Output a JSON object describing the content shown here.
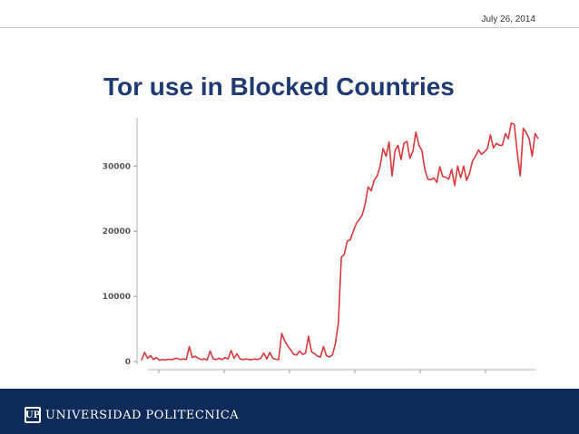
{
  "header": {
    "date": "July 26, 2014"
  },
  "slide": {
    "title": "Tor use in Blocked Countries"
  },
  "footer": {
    "logo_mark": "UP",
    "university": "UNIVERSIDAD POLITECNICA"
  },
  "colors": {
    "line": "#d9383d",
    "footer": "#0d2a58",
    "title": "#1f3a73"
  },
  "chart_data": {
    "type": "line",
    "title": "",
    "xlabel": "",
    "ylabel": "",
    "ylim": [
      0,
      37000
    ],
    "y_ticks": [
      0,
      10000,
      20000,
      30000
    ],
    "y_tick_labels": [
      "0",
      "10000",
      "20000",
      "30000"
    ],
    "grid": false,
    "series": [
      {
        "values": [
          200,
          1400,
          500,
          900,
          300,
          600,
          200,
          300,
          250,
          350,
          300,
          400,
          500,
          300,
          400,
          300,
          2300,
          600,
          800,
          500,
          300,
          400,
          250,
          1600,
          400,
          300,
          500,
          300,
          600,
          400,
          1700,
          500,
          1200,
          400,
          300,
          400,
          300,
          300,
          400,
          300,
          500,
          1300,
          400,
          1400,
          500,
          350,
          300,
          4300,
          3200,
          2400,
          1800,
          1100,
          1000,
          1600,
          1100,
          1300,
          3900,
          1500,
          1200,
          800,
          700,
          2300,
          900,
          700,
          1000,
          2800,
          6000,
          16000,
          16500,
          18500,
          18700,
          20000,
          21200,
          21800,
          22500,
          24200,
          26800,
          26200,
          27800,
          28500,
          30000,
          32700,
          31500,
          33700,
          28500,
          32400,
          33200,
          31000,
          33500,
          33800,
          31200,
          32300,
          35200,
          33200,
          32400,
          29500,
          28000,
          27900,
          28200,
          27500,
          29900,
          28400,
          28300,
          28000,
          29500,
          27000,
          30000,
          28200,
          30000,
          27800,
          28900,
          30800,
          31500,
          32500,
          31800,
          32200,
          32700,
          34800,
          32800,
          33500,
          33200,
          33200,
          35000,
          34200,
          36600,
          36400,
          32000,
          28500,
          35800,
          35100,
          34200,
          31500,
          35000,
          34200
        ]
      }
    ]
  }
}
